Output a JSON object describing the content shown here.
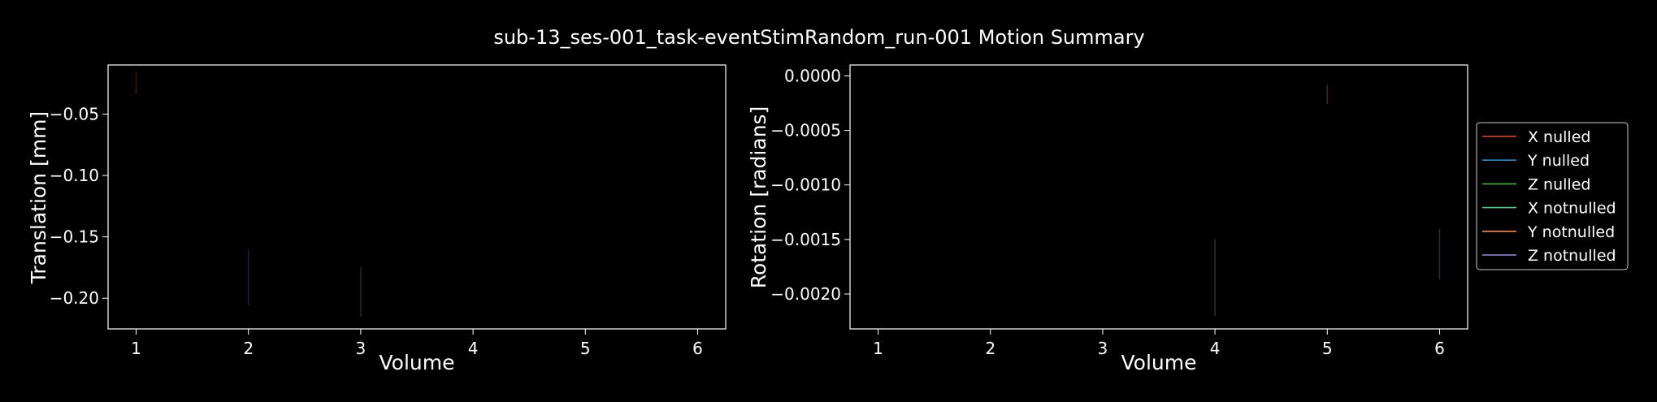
{
  "figure": {
    "title": "sub-13_ses-001_task-eventStimRandom_run-001 Motion Summary",
    "background": "#000000",
    "foreground": "#ffffff"
  },
  "legend": {
    "placement": "right",
    "entries": [
      {
        "label": "X nulled",
        "color": "#e24a33"
      },
      {
        "label": "Y nulled",
        "color": "#348abd"
      },
      {
        "label": "Z nulled",
        "color": "#4daf4a"
      },
      {
        "label": "X notnulled",
        "color": "#5fbf8a"
      },
      {
        "label": "Y notnulled",
        "color": "#f08a5a"
      },
      {
        "label": "Z notnulled",
        "color": "#988ed5"
      }
    ]
  },
  "chart_data": [
    {
      "type": "line",
      "title": "",
      "xlabel": "Volume",
      "ylabel": "Translation [mm]",
      "xlim": [
        0.75,
        6.25
      ],
      "ylim": [
        -0.225,
        -0.01
      ],
      "xticks": [
        1,
        2,
        3,
        4,
        5,
        6
      ],
      "xtick_labels": [
        "1",
        "2",
        "3",
        "4",
        "5",
        "6"
      ],
      "yticks": [
        -0.05,
        -0.1,
        -0.15,
        -0.2
      ],
      "ytick_labels": [
        "−0.05",
        "−0.10",
        "−0.15",
        "−0.20"
      ],
      "grid": false,
      "series": [
        {
          "name": "X nulled",
          "segments": [
            {
              "x": 1,
              "y0": -0.015,
              "y1": -0.034
            }
          ]
        },
        {
          "name": "Y nulled",
          "segments": [
            {
              "x": 2,
              "y0": -0.16,
              "y1": -0.206
            }
          ]
        },
        {
          "name": "Z nulled",
          "segments": [
            {
              "x": 3,
              "y0": -0.175,
              "y1": -0.215
            }
          ]
        }
      ]
    },
    {
      "type": "line",
      "title": "",
      "xlabel": "Volume",
      "ylabel": "Rotation [radians]",
      "xlim": [
        0.75,
        6.25
      ],
      "ylim": [
        -0.00232,
        0.0001
      ],
      "xticks": [
        1,
        2,
        3,
        4,
        5,
        6
      ],
      "xtick_labels": [
        "1",
        "2",
        "3",
        "4",
        "5",
        "6"
      ],
      "yticks": [
        0.0,
        -0.0005,
        -0.001,
        -0.0015,
        -0.002
      ],
      "ytick_labels": [
        "0.0000",
        "−0.0005",
        "−0.0010",
        "−0.0015",
        "−0.0020"
      ],
      "grid": false,
      "series": [
        {
          "name": "X notnulled",
          "segments": [
            {
              "x": 4,
              "y0": -0.0015,
              "y1": -0.0022
            }
          ]
        },
        {
          "name": "Y notnulled",
          "segments": [
            {
              "x": 5,
              "y0": -8e-05,
              "y1": -0.00026
            }
          ]
        },
        {
          "name": "Z notnulled",
          "segments": [
            {
              "x": 6,
              "y0": -0.0014,
              "y1": -0.00187
            }
          ]
        }
      ]
    }
  ]
}
